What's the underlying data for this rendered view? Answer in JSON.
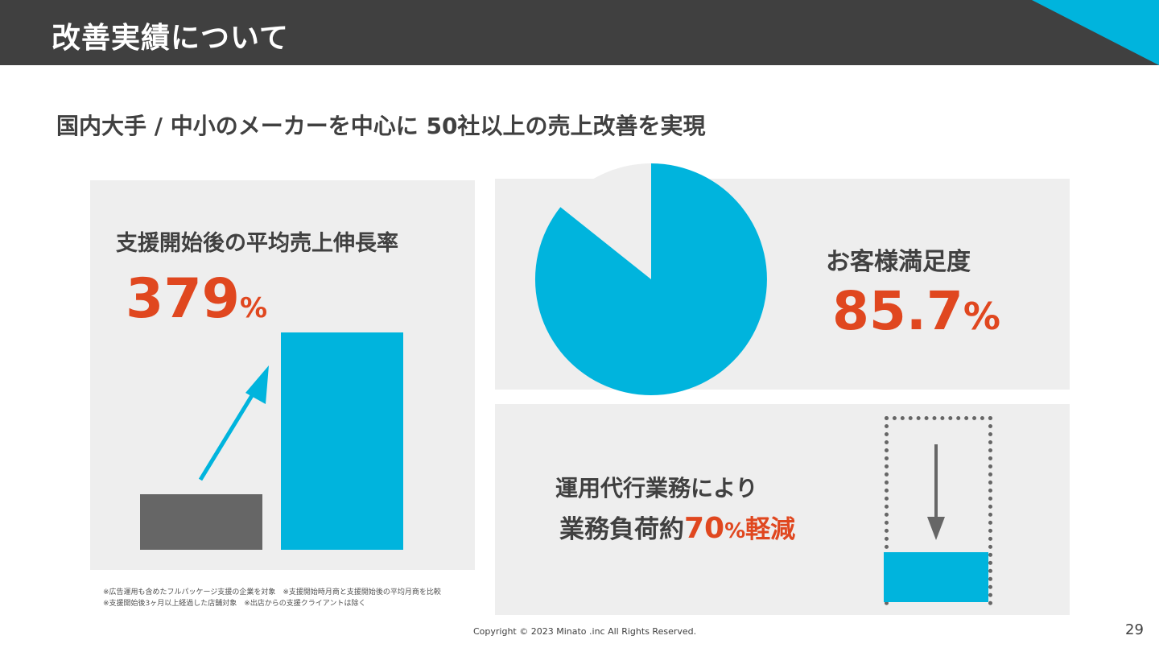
{
  "header": {
    "title": "改善実績について"
  },
  "subtitle": "国内大手 / 中小のメーカーを中心に 50社以上の売上改善を実現",
  "growth": {
    "label": "支援開始後の平均売上伸長率",
    "value": "379",
    "unit": "%"
  },
  "satisfaction": {
    "label": "お客様満足度",
    "value": "85.7",
    "unit": "%"
  },
  "operations": {
    "line1": "運用代行業務により",
    "line2_prefix": "業務負荷約",
    "line2_value": "70",
    "line2_unit": "%",
    "line2_suffix": "軽減"
  },
  "notes": [
    "※広告運用も含めたフルパッケージ支援の企業を対象　※支援開始時月商と支援開始後の平均月商を比較",
    "※支援開始後3ヶ月以上経過した店舗対象　※出店からの支援クライアントは除く"
  ],
  "footer": {
    "copyright": "Copyright © 2023 Minato .inc All Rights Reserved.",
    "page_number": "29"
  },
  "colors": {
    "accent": "#00b4dd",
    "highlight": "#e0471f",
    "dark": "#404040",
    "panel": "#eeeeee"
  },
  "chart_data": [
    {
      "type": "bar",
      "categories": [
        "",
        ""
      ],
      "values": [
        100,
        379
      ],
      "title": "",
      "xlabel": "",
      "ylabel": ""
    },
    {
      "type": "pie",
      "categories": [
        "",
        ""
      ],
      "values": [
        85.7,
        14.3
      ],
      "title": ""
    }
  ]
}
